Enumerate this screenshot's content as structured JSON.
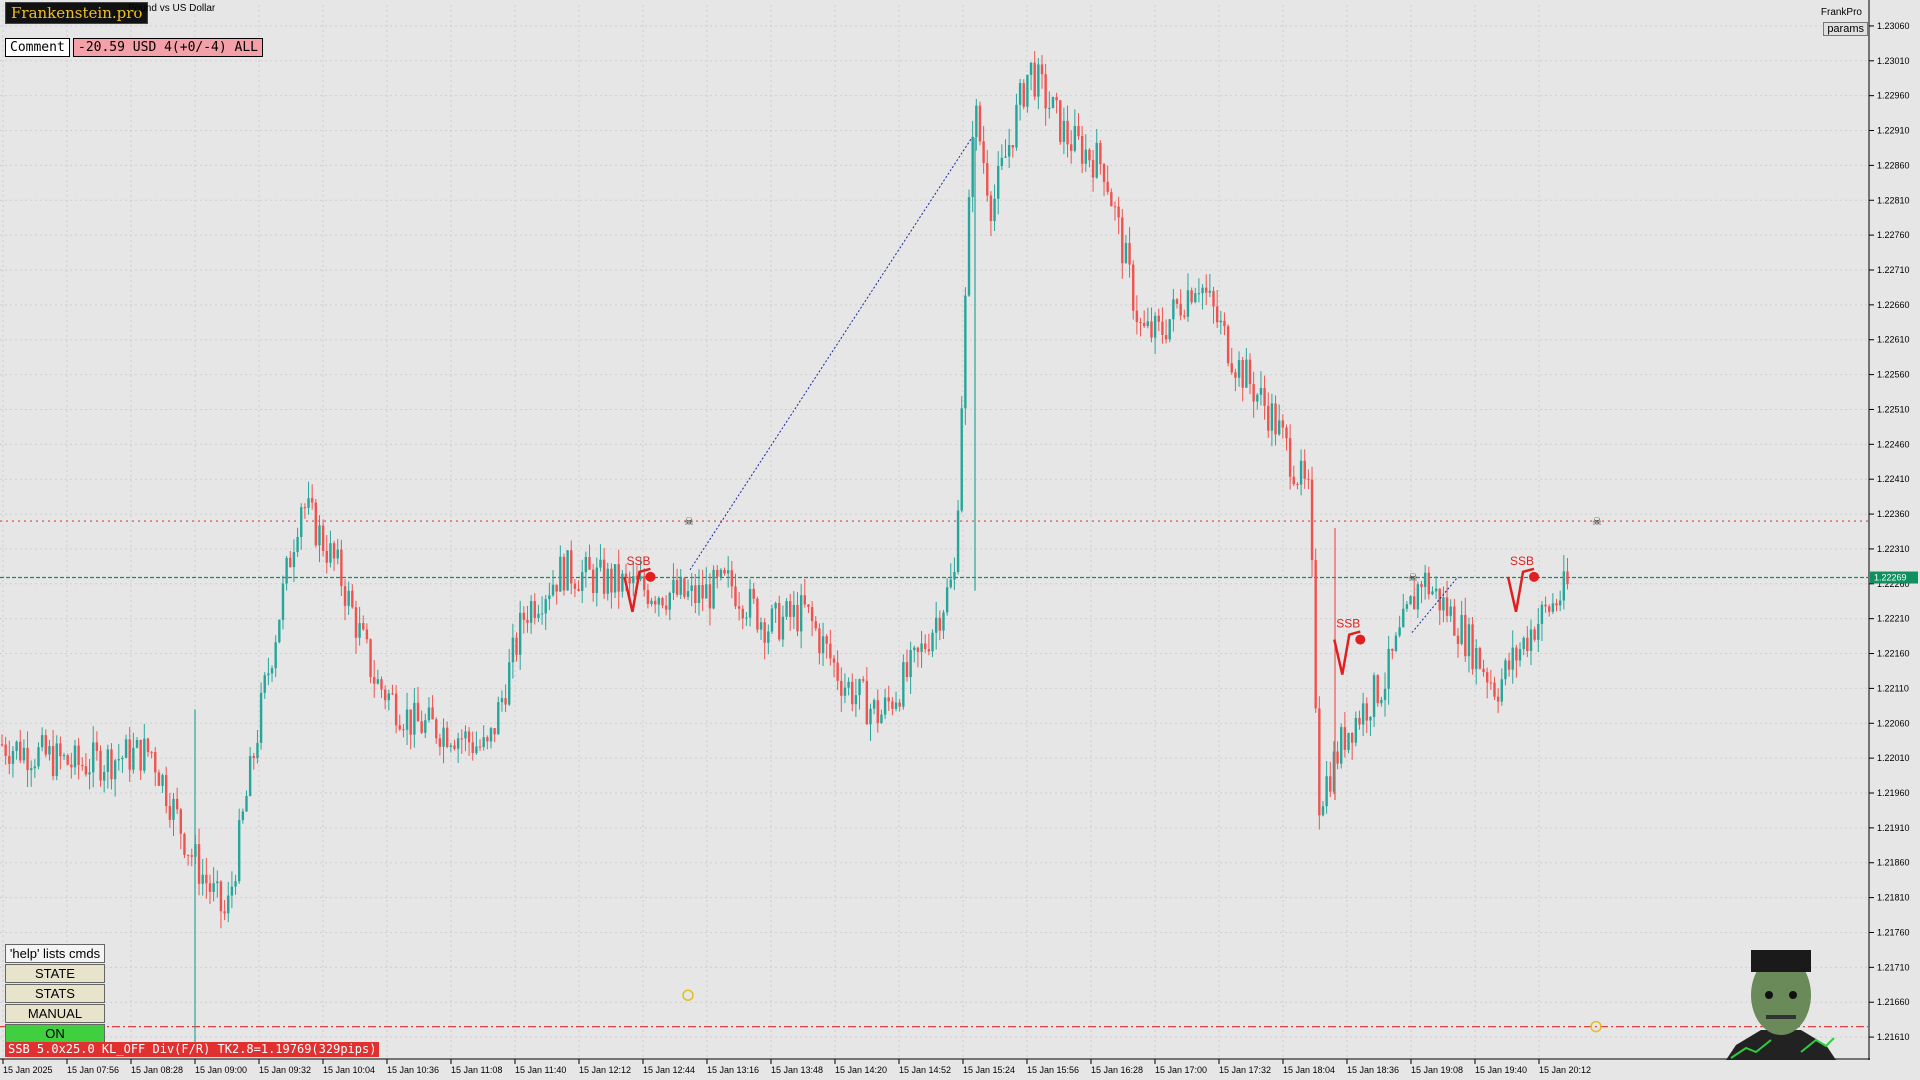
{
  "header": {
    "logo": "Frankenstein.pro",
    "symbol_title": "Pound vs US Dollar",
    "comment_label": "Comment",
    "pnl_text": "-20.59 USD 4(+0/-4) ALL",
    "brand_right": "FrankPro",
    "params_button": "params"
  },
  "left_panel": {
    "help_label": "'help' lists cmds",
    "buttons": [
      "STATE",
      "STATS",
      "MANUAL",
      "ON"
    ],
    "status_line": "SSB 5.0x25.0 KL_OFF Div(F/R) TK2.8=1.19769(329pips)"
  },
  "chart_data": {
    "type": "candlestick",
    "ylim": [
      1.2158,
      1.2309
    ],
    "current_price": 1.22269,
    "price_ticks": [
      1.2306,
      1.2301,
      1.2296,
      1.2291,
      1.2286,
      1.2281,
      1.2276,
      1.2271,
      1.2266,
      1.2261,
      1.2256,
      1.2251,
      1.2246,
      1.2241,
      1.2236,
      1.2231,
      1.2226,
      1.2221,
      1.2216,
      1.2211,
      1.2206,
      1.2201,
      1.2196,
      1.2191,
      1.2186,
      1.2181,
      1.2176,
      1.2171,
      1.2166,
      1.2161
    ],
    "time_ticks": [
      "15 Jan 2025",
      "15 Jan 07:56",
      "15 Jan 08:28",
      "15 Jan 09:00",
      "15 Jan 09:32",
      "15 Jan 10:04",
      "15 Jan 10:36",
      "15 Jan 11:08",
      "15 Jan 11:40",
      "15 Jan 12:12",
      "15 Jan 12:44",
      "15 Jan 13:16",
      "15 Jan 13:48",
      "15 Jan 14:20",
      "15 Jan 14:52",
      "15 Jan 15:24",
      "15 Jan 15:56",
      "15 Jan 16:28",
      "15 Jan 17:00",
      "15 Jan 17:32",
      "15 Jan 18:04",
      "15 Jan 18:36",
      "15 Jan 19:08",
      "15 Jan 19:40",
      "15 Jan 20:12"
    ],
    "price_path": [
      [
        0,
        1.2203
      ],
      [
        0.04,
        1.22
      ],
      [
        0.08,
        1.2202
      ],
      [
        0.1,
        1.2188
      ],
      [
        0.12,
        1.2178
      ],
      [
        0.14,
        1.221
      ],
      [
        0.16,
        1.2238
      ],
      [
        0.18,
        1.2228
      ],
      [
        0.2,
        1.2212
      ],
      [
        0.22,
        1.2206
      ],
      [
        0.24,
        1.2205
      ],
      [
        0.26,
        1.2202
      ],
      [
        0.28,
        1.2222
      ],
      [
        0.3,
        1.2228
      ],
      [
        0.33,
        1.2226
      ],
      [
        0.35,
        1.2225
      ],
      [
        0.37,
        1.2224
      ],
      [
        0.39,
        1.2226
      ],
      [
        0.41,
        1.222
      ],
      [
        0.43,
        1.2222
      ],
      [
        0.45,
        1.2212
      ],
      [
        0.47,
        1.2207
      ],
      [
        0.49,
        1.2215
      ],
      [
        0.51,
        1.2227
      ],
      [
        0.52,
        1.2295
      ],
      [
        0.53,
        1.228
      ],
      [
        0.55,
        1.23
      ],
      [
        0.57,
        1.229
      ],
      [
        0.59,
        1.2286
      ],
      [
        0.61,
        1.2262
      ],
      [
        0.62,
        1.2262
      ],
      [
        0.64,
        1.227
      ],
      [
        0.66,
        1.2258
      ],
      [
        0.68,
        1.225
      ],
      [
        0.7,
        1.2238
      ],
      [
        0.705,
        1.2195
      ],
      [
        0.72,
        1.2205
      ],
      [
        0.74,
        1.2212
      ],
      [
        0.76,
        1.2227
      ],
      [
        0.78,
        1.222
      ],
      [
        0.8,
        1.2211
      ],
      [
        0.82,
        1.222
      ],
      [
        0.84,
        1.2226
      ]
    ],
    "horizontal_levels": [
      {
        "price": 1.2235,
        "style": "dotted",
        "color": "#e04040"
      },
      {
        "price": 1.22269,
        "style": "dashed",
        "color": "#109060"
      },
      {
        "price": 1.21625,
        "style": "dashdot",
        "color": "#e04040"
      }
    ],
    "markers": [
      {
        "label": "SSB",
        "x": 0.345,
        "price": 1.2227
      },
      {
        "label": "SSB",
        "x": 0.725,
        "price": 1.2218
      },
      {
        "label": "SSB",
        "x": 0.818,
        "price": 1.2227
      }
    ],
    "colors": {
      "bull": "#26a69a",
      "bear": "#ef5350"
    }
  }
}
